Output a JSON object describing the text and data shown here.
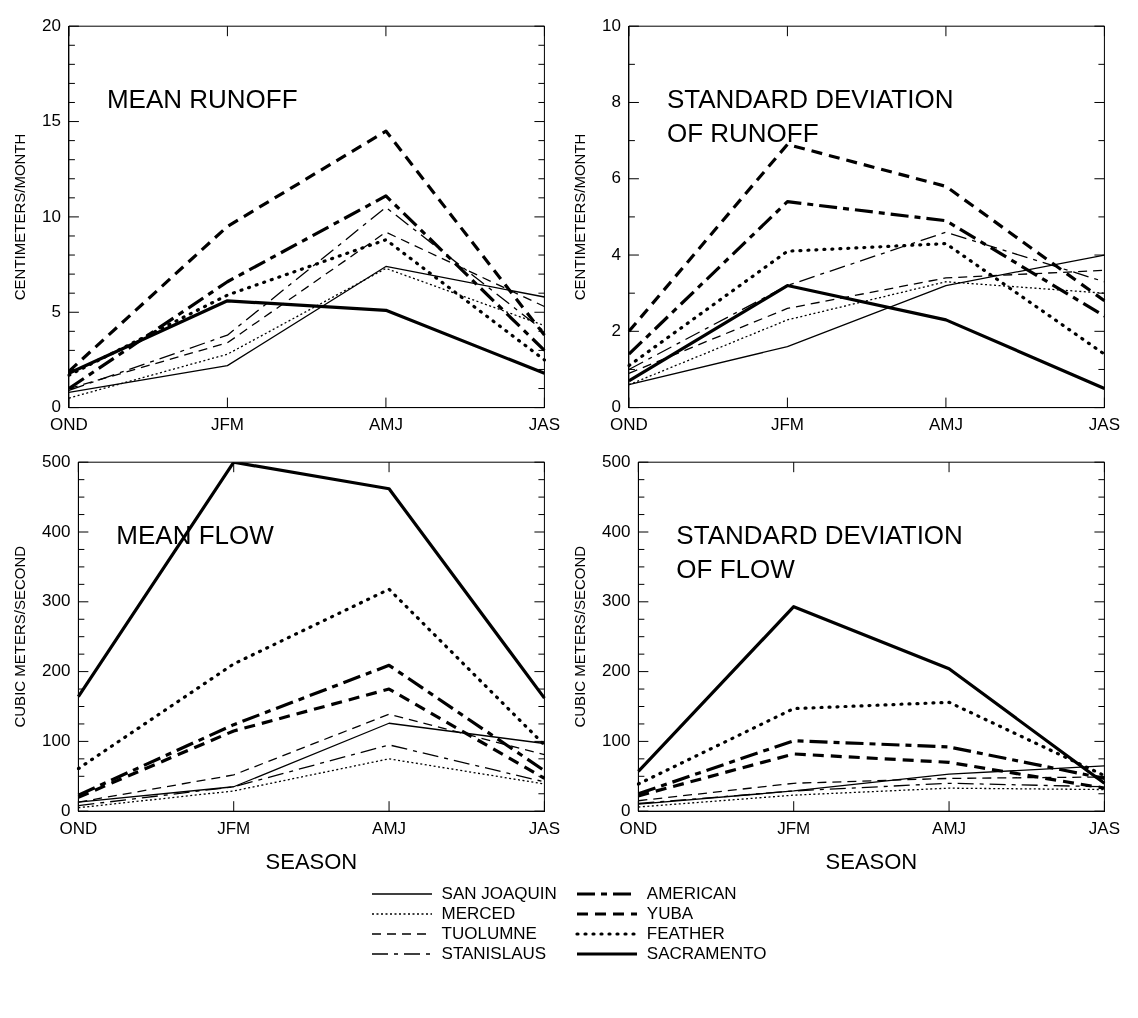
{
  "chart_data": [
    {
      "type": "line",
      "title": "MEAN RUNOFF",
      "ylabel": "CENTIMETERS/MONTH",
      "categories": [
        "OND",
        "JFM",
        "AMJ",
        "JAS"
      ],
      "ylim": [
        0,
        20
      ],
      "yticks": [
        0,
        {
          "value": 1,
          "label": null
        },
        {
          "value": 2,
          "label": null
        },
        {
          "value": 3,
          "label": null
        },
        {
          "value": 4,
          "label": null
        },
        5,
        {
          "value": 6,
          "label": null
        },
        {
          "value": 7,
          "label": null
        },
        {
          "value": 8,
          "label": null
        },
        {
          "value": 9,
          "label": null
        },
        10,
        {
          "value": 11,
          "label": null
        },
        {
          "value": 12,
          "label": null
        },
        {
          "value": 13,
          "label": null
        },
        {
          "value": 14,
          "label": null
        },
        15,
        {
          "value": 16,
          "label": null
        },
        {
          "value": 17,
          "label": null
        },
        {
          "value": 18,
          "label": null
        },
        {
          "value": 19,
          "label": null
        },
        20
      ],
      "grid": false,
      "legend": "bottom",
      "marker": "none",
      "series": [
        {
          "name": "SAN JOAQUIN",
          "color": "#000000",
          "line_style": "solid",
          "values": [
            0.8,
            2.2,
            7.4,
            5.8
          ]
        },
        {
          "name": "MERCED",
          "color": "#000000",
          "line_style": "dotted",
          "values": [
            0.5,
            2.8,
            7.3,
            4.3
          ]
        },
        {
          "name": "TUOLUMNE",
          "color": "#000000",
          "line_style": "dashed",
          "values": [
            1.0,
            3.4,
            9.2,
            5.3
          ]
        },
        {
          "name": "STANISLAUS",
          "color": "#000000",
          "line_style": "dashed",
          "values": [
            0.9,
            3.8,
            10.5,
            4.0
          ]
        },
        {
          "name": "AMERICAN",
          "color": "#000000",
          "line_style": "dashed",
          "values": [
            1.0,
            6.6,
            11.1,
            3.0
          ]
        },
        {
          "name": "YUBA",
          "color": "#000000",
          "line_style": "dashed",
          "values": [
            1.9,
            9.5,
            14.5,
            3.8
          ]
        },
        {
          "name": "FEATHER",
          "color": "#000000",
          "line_style": "dotted",
          "values": [
            1.7,
            5.9,
            8.8,
            2.5
          ]
        },
        {
          "name": "SACRAMENTO",
          "color": "#000000",
          "line_style": "solid",
          "values": [
            1.8,
            5.6,
            5.1,
            1.8
          ]
        }
      ]
    },
    {
      "type": "line",
      "title": "STANDARD DEVIATION OF RUNOFF",
      "ylabel": "CENTIMETERS/MONTH",
      "categories": [
        "OND",
        "JFM",
        "AMJ",
        "JAS"
      ],
      "ylim": [
        0,
        10
      ],
      "yticks": [
        0,
        {
          "value": 1,
          "label": null
        },
        2,
        {
          "value": 3,
          "label": null
        },
        4,
        {
          "value": 5,
          "label": null
        },
        6,
        {
          "value": 7,
          "label": null
        },
        8,
        {
          "value": 9,
          "label": null
        },
        10
      ],
      "grid": false,
      "marker": "none",
      "series": [
        {
          "color": "#000000",
          "line_style": "solid",
          "values": [
            0.6,
            1.6,
            3.2,
            4.0
          ]
        },
        {
          "color": "#000000",
          "line_style": "dotted",
          "values": [
            0.6,
            2.3,
            3.3,
            3.0
          ]
        },
        {
          "color": "#000000",
          "line_style": "dashed",
          "values": [
            0.9,
            2.6,
            3.4,
            3.6
          ]
        },
        {
          "color": "#000000",
          "line_style": "dashed",
          "values": [
            1.0,
            3.2,
            4.6,
            3.3
          ]
        },
        {
          "color": "#000000",
          "line_style": "dashed",
          "values": [
            1.4,
            5.4,
            4.9,
            2.4
          ]
        },
        {
          "color": "#000000",
          "line_style": "dashed",
          "values": [
            2.0,
            6.9,
            5.8,
            2.8
          ]
        },
        {
          "color": "#000000",
          "line_style": "dotted",
          "values": [
            1.1,
            4.1,
            4.3,
            1.4
          ]
        },
        {
          "color": "#000000",
          "line_style": "solid",
          "values": [
            0.7,
            3.2,
            2.3,
            0.5
          ]
        }
      ]
    },
    {
      "type": "line",
      "title": "MEAN FLOW",
      "xlabel": "SEASON",
      "ylabel": "CUBIC METERS/SECOND",
      "categories": [
        "OND",
        "JFM",
        "AMJ",
        "JAS"
      ],
      "ylim": [
        0,
        500
      ],
      "yticks": [
        0,
        {
          "value": 25,
          "label": null
        },
        {
          "value": 50,
          "label": null
        },
        {
          "value": 75,
          "label": null
        },
        100,
        {
          "value": 125,
          "label": null
        },
        {
          "value": 150,
          "label": null
        },
        {
          "value": 175,
          "label": null
        },
        200,
        {
          "value": 225,
          "label": null
        },
        {
          "value": 250,
          "label": null
        },
        {
          "value": 275,
          "label": null
        },
        300,
        {
          "value": 325,
          "label": null
        },
        {
          "value": 350,
          "label": null
        },
        {
          "value": 375,
          "label": null
        },
        400,
        {
          "value": 425,
          "label": null
        },
        {
          "value": 450,
          "label": null
        },
        {
          "value": 475,
          "label": null
        },
        500
      ],
      "grid": false,
      "marker": "none",
      "series": [
        {
          "color": "#000000",
          "line_style": "solid",
          "values": [
            13,
            35,
            126,
            97
          ]
        },
        {
          "color": "#000000",
          "line_style": "dotted",
          "values": [
            5,
            29,
            75,
            39
          ]
        },
        {
          "color": "#000000",
          "line_style": "dashed",
          "values": [
            13,
            52,
            139,
            81
          ]
        },
        {
          "color": "#000000",
          "line_style": "dashed",
          "values": [
            8,
            35,
            95,
            42
          ]
        },
        {
          "color": "#000000",
          "line_style": "dashed",
          "values": [
            23,
            124,
            209,
            58
          ]
        },
        {
          "color": "#000000",
          "line_style": "dashed",
          "values": [
            20,
            115,
            175,
            47
          ]
        },
        {
          "color": "#000000",
          "line_style": "dotted",
          "values": [
            61,
            211,
            318,
            95
          ]
        },
        {
          "color": "#000000",
          "line_style": "solid",
          "values": [
            164,
            500,
            462,
            162
          ]
        }
      ]
    },
    {
      "type": "line",
      "title": "STANDARD DEVIATION OF FLOW",
      "xlabel": "SEASON",
      "ylabel": "CUBIC METERS/SECOND",
      "categories": [
        "OND",
        "JFM",
        "AMJ",
        "JAS"
      ],
      "ylim": [
        0,
        500
      ],
      "yticks": [
        0,
        {
          "value": 25,
          "label": null
        },
        {
          "value": 50,
          "label": null
        },
        {
          "value": 75,
          "label": null
        },
        100,
        {
          "value": 125,
          "label": null
        },
        {
          "value": 150,
          "label": null
        },
        {
          "value": 175,
          "label": null
        },
        200,
        {
          "value": 225,
          "label": null
        },
        {
          "value": 250,
          "label": null
        },
        {
          "value": 275,
          "label": null
        },
        300,
        {
          "value": 325,
          "label": null
        },
        {
          "value": 350,
          "label": null
        },
        {
          "value": 375,
          "label": null
        },
        400,
        {
          "value": 425,
          "label": null
        },
        {
          "value": 450,
          "label": null
        },
        {
          "value": 475,
          "label": null
        },
        500
      ],
      "grid": false,
      "marker": "none",
      "series": [
        {
          "color": "#000000",
          "line_style": "solid",
          "values": [
            10,
            29,
            53,
            65
          ]
        },
        {
          "color": "#000000",
          "line_style": "dotted",
          "values": [
            6,
            23,
            33,
            31
          ]
        },
        {
          "color": "#000000",
          "line_style": "dashed",
          "values": [
            15,
            40,
            47,
            49
          ]
        },
        {
          "color": "#000000",
          "line_style": "dashed",
          "values": [
            11,
            29,
            40,
            35
          ]
        },
        {
          "color": "#000000",
          "line_style": "dashed",
          "values": [
            25,
            101,
            92,
            47
          ]
        },
        {
          "color": "#000000",
          "line_style": "dashed",
          "values": [
            22,
            82,
            70,
            33
          ]
        },
        {
          "color": "#000000",
          "line_style": "dotted",
          "values": [
            39,
            147,
            156,
            51
          ]
        },
        {
          "color": "#000000",
          "line_style": "solid",
          "values": [
            57,
            293,
            204,
            40
          ]
        }
      ]
    }
  ]
}
